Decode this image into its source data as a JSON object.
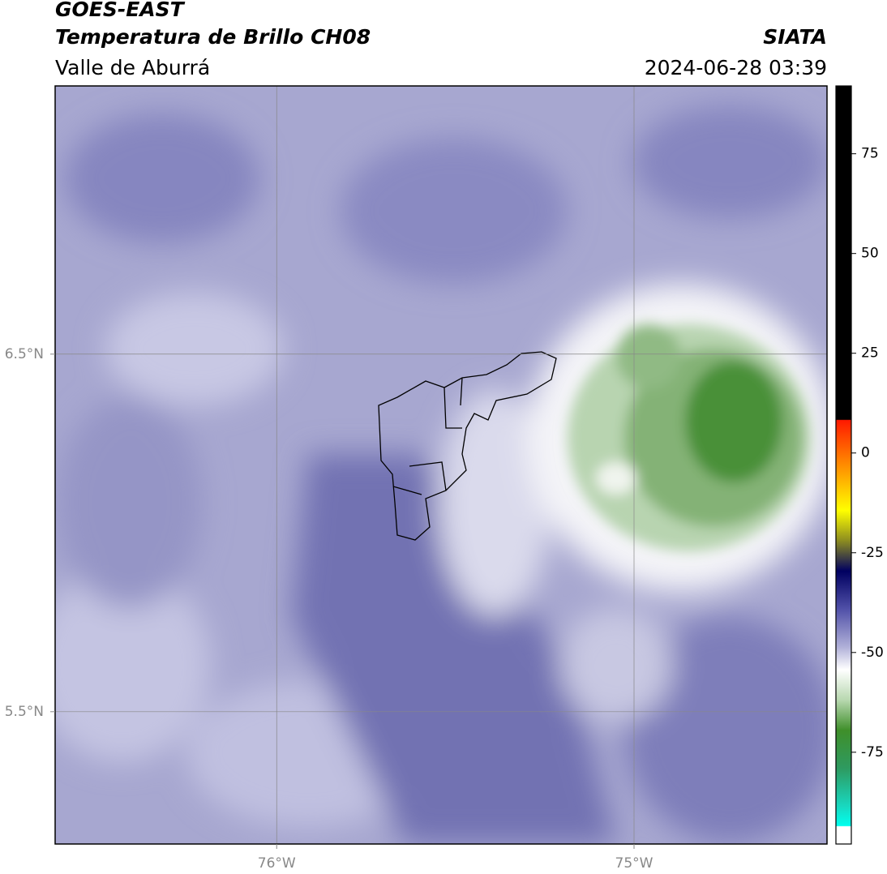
{
  "header": {
    "title": "GOES-EAST",
    "subtitle": "Temperatura de Brillo CH08",
    "region": "Valle de Aburrá",
    "source": "SIATA",
    "datetime": "2024-06-28 03:39"
  },
  "map": {
    "xlim": [
      -76.62,
      -74.46
    ],
    "ylim": [
      5.13,
      7.25
    ],
    "xticks": [
      {
        "value": -76,
        "label": "76°W"
      },
      {
        "value": -75,
        "label": "75°W"
      }
    ],
    "yticks": [
      {
        "value": 6.5,
        "label": "6.5°N"
      },
      {
        "value": 5.5,
        "label": "5.5°N"
      }
    ],
    "grid": true
  },
  "colorbar": {
    "lim": [
      -98,
      92
    ],
    "ticks": [
      75,
      50,
      25,
      0,
      -25,
      -50,
      -75
    ]
  }
}
